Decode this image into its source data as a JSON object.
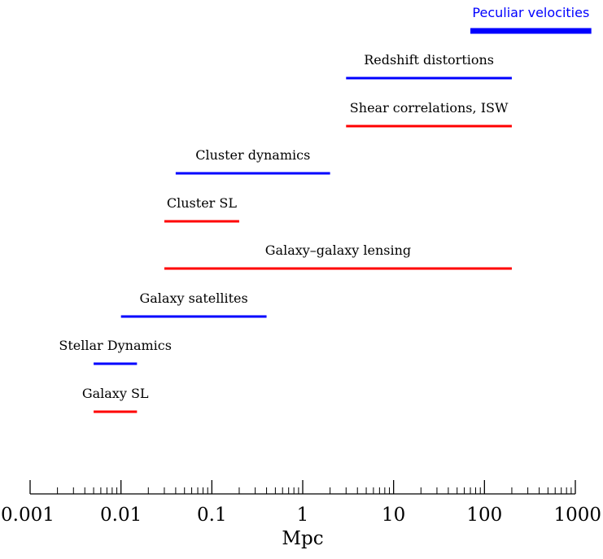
{
  "chart_data": {
    "type": "range",
    "title": "",
    "xlabel": "Mpc",
    "ylabel": "",
    "xscale": "log",
    "xlim": [
      0.001,
      1000
    ],
    "xticks": [
      {
        "value": 0.001,
        "label": "0.001"
      },
      {
        "value": 0.01,
        "label": "0.01"
      },
      {
        "value": 0.1,
        "label": "0.1"
      },
      {
        "value": 1,
        "label": "1"
      },
      {
        "value": 10,
        "label": "10"
      },
      {
        "value": 100,
        "label": "100"
      },
      {
        "value": 1000,
        "label": "1000"
      }
    ],
    "ranges": [
      {
        "name": "Peculiar velocities",
        "min": 70,
        "max": 1500,
        "color": "#0000ff",
        "label_font": "sans",
        "thick": true
      },
      {
        "name": "Redshift distortions",
        "min": 3,
        "max": 200,
        "color": "#0000ff"
      },
      {
        "name": "Shear correlations, ISW",
        "min": 3,
        "max": 200,
        "color": "#ff0000"
      },
      {
        "name": "Cluster dynamics",
        "min": 0.04,
        "max": 2,
        "color": "#0000ff"
      },
      {
        "name": "Cluster SL",
        "min": 0.03,
        "max": 0.2,
        "color": "#ff0000"
      },
      {
        "name": "Galaxy–galaxy lensing",
        "min": 0.03,
        "max": 200,
        "color": "#ff0000"
      },
      {
        "name": "Galaxy satellites",
        "min": 0.01,
        "max": 0.4,
        "color": "#0000ff"
      },
      {
        "name": "Stellar Dynamics",
        "min": 0.005,
        "max": 0.015,
        "color": "#0000ff"
      },
      {
        "name": "Galaxy SL",
        "min": 0.005,
        "max": 0.015,
        "color": "#ff0000"
      }
    ]
  }
}
